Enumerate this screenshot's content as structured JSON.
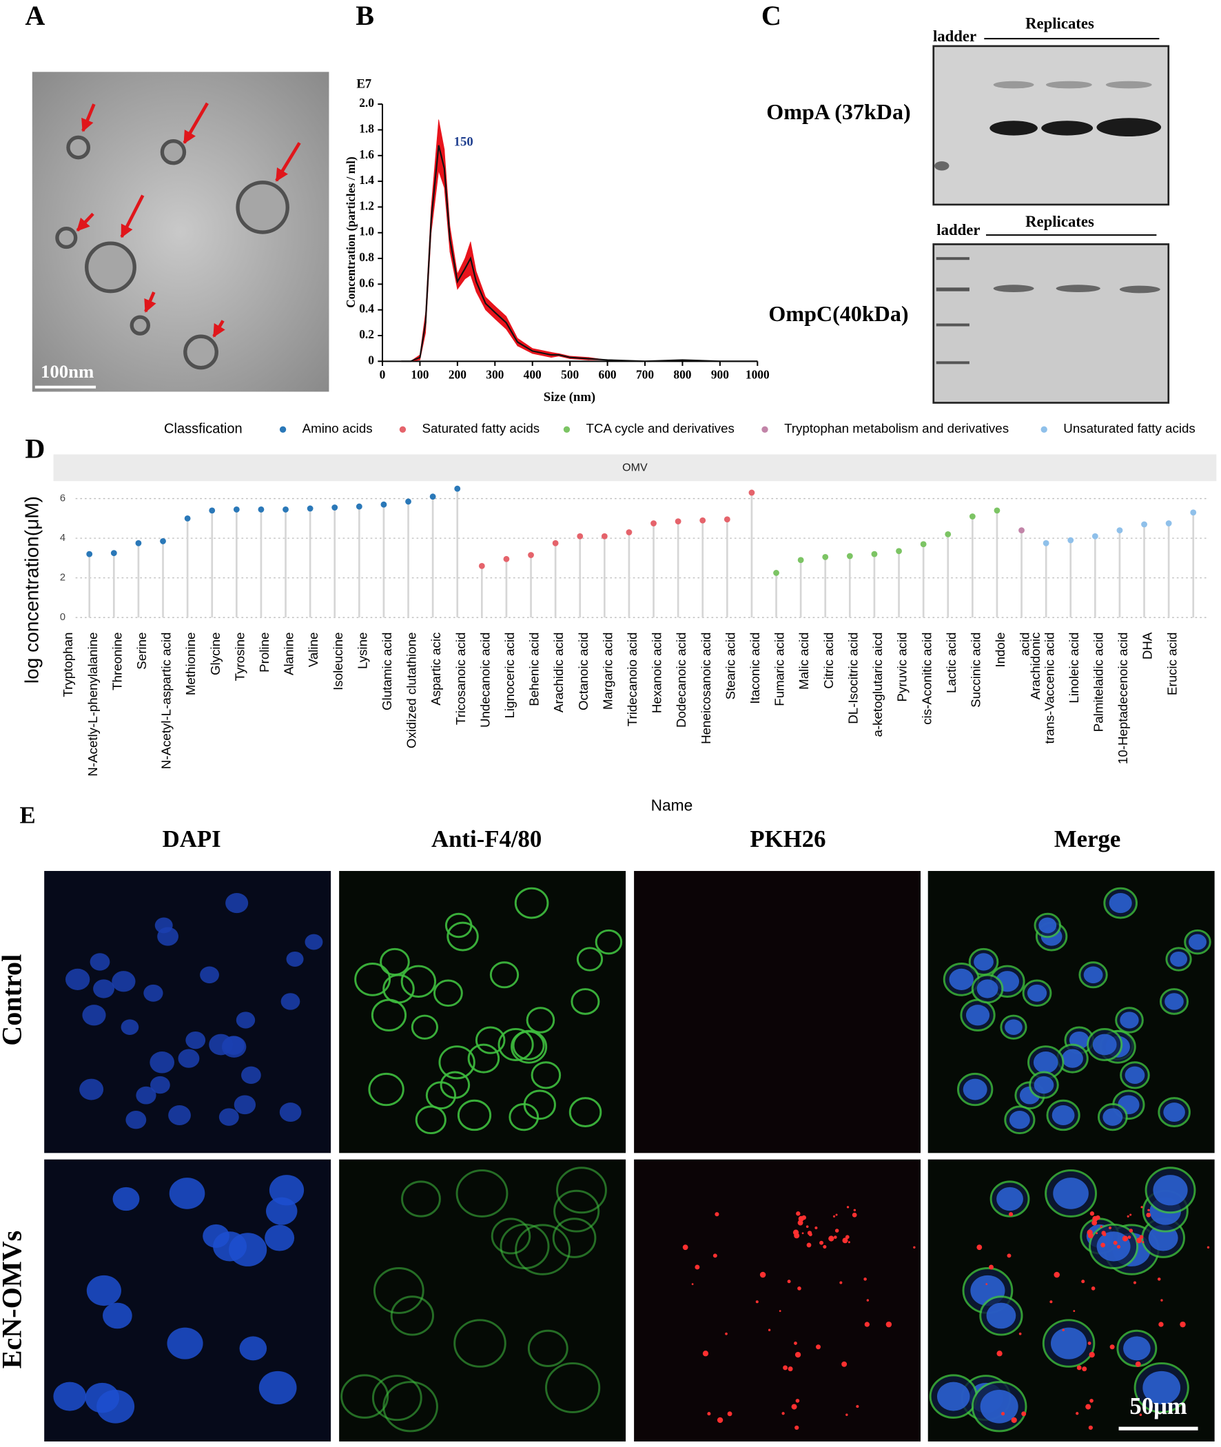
{
  "chart_data": [
    {
      "type": "line",
      "xlabel": "Size (nm)",
      "ylabel": "Concentration (particles / ml)",
      "unit_label": "E7",
      "annotation": "150",
      "x": [
        50,
        75,
        100,
        115,
        130,
        150,
        165,
        180,
        200,
        220,
        235,
        250,
        275,
        300,
        330,
        360,
        400,
        450,
        470,
        500,
        550,
        600,
        700,
        800,
        900,
        1000
      ],
      "series": [
        {
          "color": "#111111",
          "band_color": "#e8141c",
          "values": [
            0,
            0,
            0.03,
            0.3,
            1.1,
            1.68,
            1.5,
            0.95,
            0.62,
            0.72,
            0.8,
            0.62,
            0.45,
            0.38,
            0.3,
            0.15,
            0.08,
            0.05,
            0.05,
            0.03,
            0.02,
            0.01,
            0,
            0.01,
            0,
            0
          ],
          "errors": [
            0,
            0,
            0.02,
            0.08,
            0.1,
            0.2,
            0.15,
            0.1,
            0.06,
            0.08,
            0.13,
            0.08,
            0.05,
            0.05,
            0.05,
            0.03,
            0.02,
            0.02,
            0.01,
            0.01,
            0.01,
            0,
            0,
            0,
            0,
            0
          ]
        }
      ],
      "xlim": [
        0,
        1000
      ],
      "xticks": [
        0,
        100,
        200,
        300,
        400,
        500,
        600,
        700,
        800,
        900,
        1000
      ],
      "ylim": [
        0,
        2
      ],
      "yticks": [
        0,
        0.2,
        0.4,
        0.6,
        0.8,
        {
          "value": 1,
          "label": "1.0"
        },
        1.2,
        1.4,
        1.6,
        1.8,
        {
          "value": 2,
          "label": "2.0"
        }
      ]
    },
    {
      "type": "lollipop",
      "title": "OMV",
      "xlabel": "Name",
      "ylabel": "log concentration(μM)",
      "legend_title": "Classfication",
      "legend": "top",
      "grid": true,
      "extra_label": "Arachidonic",
      "categories": [
        "Tryptophan",
        "N-Acetly-L-phenylalanine",
        "Threonine",
        "Serine",
        "N-Acetyl-L-aspartic acid",
        "Methionine",
        "Glycine",
        "Tyrosine",
        "Proline",
        "Alanine",
        "Valine",
        "Isoleucine",
        "Lysine",
        "Glutamic acid",
        "Oxidized clutathione",
        "Aspartic acic",
        "Tricosanoic acid",
        "Undecanoic acid",
        "Lignoceric acid",
        "Behenic acid",
        "Arachidic acid",
        "Octanoic acid",
        "Margaric acid",
        "Tridecanoio acid",
        "Hexanoic acid",
        "Dodecanoic acid",
        "Heneicosanoic acid",
        "Stearic acid",
        "Itaconic acid",
        "Fumaric acid",
        "Malic acid",
        "Citric acid",
        "DL-Isocitric acid",
        "a-ketoglutaric aicd",
        "Pyruvic acid",
        "cis-Aconitic acid",
        "Lactic acid",
        "Succinic acid",
        "Indole",
        "acid",
        "trans-Vaccenic acid",
        "Linoleic acid",
        "Palmitelaidic acid",
        "10-Heptadecenoic acid",
        "DHA",
        "Erucic acid"
      ],
      "series": [
        {
          "name": "Amino acids",
          "color": "#2a78b8",
          "values": [
            3.2,
            3.25,
            3.75,
            3.85,
            5.0,
            5.4,
            5.45,
            5.45,
            5.45,
            5.5,
            5.55,
            5.6,
            5.7,
            5.85,
            6.1,
            6.5,
            null,
            null,
            null,
            null,
            null,
            null,
            null,
            null,
            null,
            null,
            null,
            null,
            null,
            null,
            null,
            null,
            null,
            null,
            null,
            null,
            null,
            null,
            null,
            null,
            null,
            null,
            null,
            null,
            null,
            null
          ]
        },
        {
          "name": "Saturated fatty acids",
          "color": "#e5636b",
          "values": [
            null,
            null,
            null,
            null,
            null,
            null,
            null,
            null,
            null,
            null,
            null,
            null,
            null,
            null,
            null,
            null,
            2.6,
            2.95,
            3.15,
            3.75,
            4.1,
            4.1,
            4.3,
            4.75,
            4.85,
            4.9,
            4.95,
            6.3,
            null,
            null,
            null,
            null,
            null,
            null,
            null,
            null,
            null,
            null,
            null,
            null,
            null,
            null,
            null,
            null,
            null,
            null
          ]
        },
        {
          "name": "TCA cycle and derivatives",
          "color": "#7cc464",
          "values": [
            null,
            null,
            null,
            null,
            null,
            null,
            null,
            null,
            null,
            null,
            null,
            null,
            null,
            null,
            null,
            null,
            null,
            null,
            null,
            null,
            null,
            null,
            null,
            null,
            null,
            null,
            null,
            null,
            2.25,
            2.9,
            3.05,
            3.1,
            3.2,
            3.35,
            3.7,
            4.2,
            5.1,
            5.4,
            null,
            null,
            null,
            null,
            null,
            null,
            null,
            null
          ]
        },
        {
          "name": "Tryptophan metabolism and derivatives",
          "color": "#c284a8",
          "values": [
            null,
            null,
            null,
            null,
            null,
            null,
            null,
            null,
            null,
            null,
            null,
            null,
            null,
            null,
            null,
            null,
            null,
            null,
            null,
            null,
            null,
            null,
            null,
            null,
            null,
            null,
            null,
            null,
            null,
            null,
            null,
            null,
            null,
            null,
            null,
            null,
            null,
            null,
            4.4,
            null,
            null,
            null,
            null,
            null,
            null,
            null
          ]
        },
        {
          "name": "Unsaturated fatty acids",
          "color": "#8fc0ea",
          "values": [
            null,
            null,
            null,
            null,
            null,
            null,
            null,
            null,
            null,
            null,
            null,
            null,
            null,
            null,
            null,
            null,
            null,
            null,
            null,
            null,
            null,
            null,
            null,
            null,
            null,
            null,
            null,
            null,
            null,
            null,
            null,
            null,
            null,
            null,
            null,
            null,
            null,
            null,
            null,
            3.75,
            3.9,
            4.1,
            4.4,
            4.7,
            4.75,
            5.3
          ]
        }
      ],
      "ylim": [
        -0.35,
        6.65
      ],
      "yticks": [
        0,
        2,
        4,
        6
      ]
    }
  ],
  "figure": {
    "panel_labels": [
      "A",
      "B",
      "C",
      "D",
      "E"
    ],
    "tem_scale_bar": "100nm",
    "western": [
      {
        "ladder": "ladder",
        "group": "Replicates",
        "protein": "OmpA (37kDa)"
      },
      {
        "ladder": "ladder",
        "group": "Replicates",
        "protein": "OmpC(40kDa)"
      }
    ],
    "microscopy": {
      "columns": [
        "DAPI",
        "Anti-F4/80",
        "PKH26",
        "Merge"
      ],
      "rows": [
        "Control",
        "EcN-OMVs"
      ],
      "scale_bar": "50μm"
    }
  }
}
